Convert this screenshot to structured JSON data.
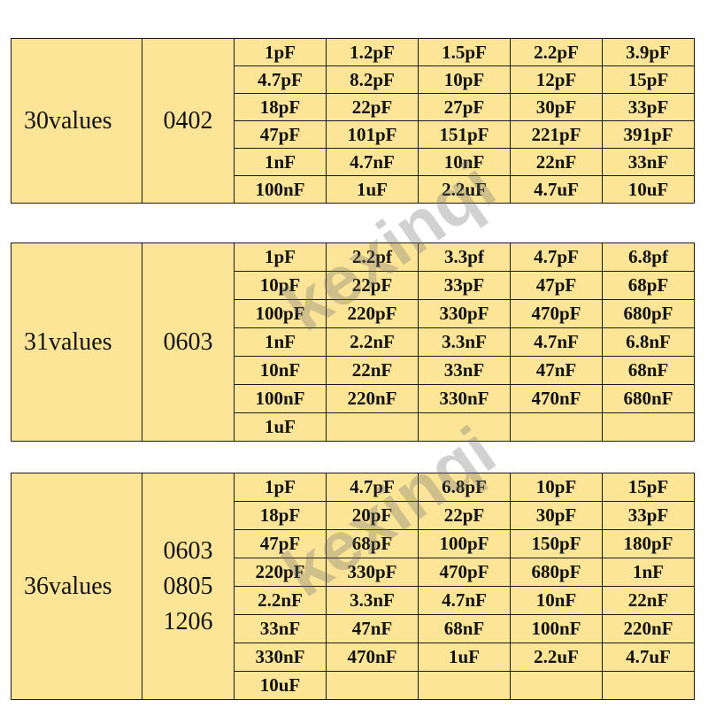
{
  "watermark": "kexinqi",
  "kits": [
    {
      "count_label": "30values",
      "packages": [
        "0402"
      ],
      "rows": [
        [
          "1pF",
          "1.2pF",
          "1.5pF",
          "2.2pF",
          "3.9pF"
        ],
        [
          "4.7pF",
          "8.2pF",
          "10pF",
          "12pF",
          "15pF"
        ],
        [
          "18pF",
          "22pF",
          "27pF",
          "30pF",
          "33pF"
        ],
        [
          "47pF",
          "101pF",
          "151pF",
          "221pF",
          "391pF"
        ],
        [
          "1nF",
          "4.7nF",
          "10nF",
          "22nF",
          "33nF"
        ],
        [
          "100nF",
          "1uF",
          "2.2uF",
          "4.7uF",
          "10uF"
        ]
      ]
    },
    {
      "count_label": "31values",
      "packages": [
        "0603"
      ],
      "rows": [
        [
          "1pF",
          "2.2pf",
          "3.3pf",
          "4.7pF",
          "6.8pf"
        ],
        [
          "10pF",
          "22pF",
          "33pF",
          "47pF",
          "68pF"
        ],
        [
          "100pF",
          "220pF",
          "330pF",
          "470pF",
          "680pF"
        ],
        [
          "1nF",
          "2.2nF",
          "3.3nF",
          "4.7nF",
          "6.8nF"
        ],
        [
          "10nF",
          "22nF",
          "33nF",
          "47nF",
          "68nF"
        ],
        [
          "100nF",
          "220nF",
          "330nF",
          "470nF",
          "680nF"
        ],
        [
          "1uF",
          "",
          "",
          "",
          ""
        ]
      ]
    },
    {
      "count_label": "36values",
      "packages": [
        "0603",
        "0805",
        "1206"
      ],
      "rows": [
        [
          "1pF",
          "4.7pF",
          "6.8pF",
          "10pF",
          "15pF"
        ],
        [
          "18pF",
          "20pF",
          "22pF",
          "30pF",
          "33pF"
        ],
        [
          "47pF",
          "68pF",
          "100pF",
          "150pF",
          "180pF"
        ],
        [
          "220pF",
          "330pF",
          "470pF",
          "680pF",
          "1nF"
        ],
        [
          "2.2nF",
          "3.3nF",
          "4.7nF",
          "10nF",
          "22nF"
        ],
        [
          "33nF",
          "47nF",
          "68nF",
          "100nF",
          "220nF"
        ],
        [
          "330nF",
          "470nF",
          "1uF",
          "2.2uF",
          "4.7uF"
        ],
        [
          "10uF",
          "",
          "",
          "",
          ""
        ]
      ]
    }
  ]
}
